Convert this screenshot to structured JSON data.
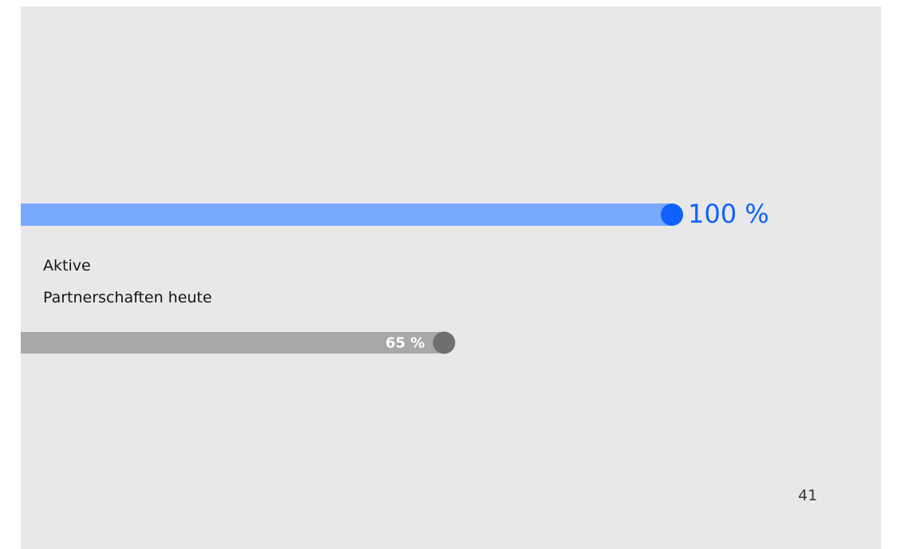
{
  "chart_data": {
    "type": "bar",
    "orientation": "horizontal",
    "categories": [
      null,
      "Aktive\nPartnerschaften heute"
    ],
    "values": [
      100,
      65
    ],
    "value_labels": [
      "100 %",
      "65 %"
    ],
    "colors": [
      "#78a9ff",
      "#a8a8a8"
    ],
    "dot_colors": [
      "#0f62fe",
      "#6f6f6f"
    ],
    "xlim": [
      0,
      100
    ]
  },
  "page_number": "41"
}
